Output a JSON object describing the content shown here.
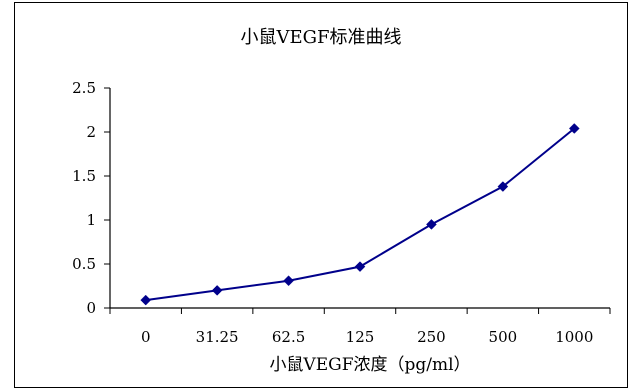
{
  "chart_data": {
    "type": "line",
    "title": "小鼠VEGF标准曲线",
    "xlabel": "小鼠VEGF浓度（pg/ml）",
    "ylabel": "",
    "categories": [
      "0",
      "31.25",
      "62.5",
      "125",
      "250",
      "500",
      "1000"
    ],
    "series": [
      {
        "values": [
          0.09,
          0.2,
          0.31,
          0.47,
          0.95,
          1.38,
          2.04
        ],
        "color": "#00008B"
      }
    ],
    "ylim": [
      0,
      2.5
    ],
    "yticks": [
      0,
      0.5,
      1,
      1.5,
      2,
      2.5
    ],
    "ytick_labels": [
      "0",
      "0.5",
      "1",
      "1.5",
      "2",
      "2.5"
    ],
    "grid": false,
    "legend": "none",
    "marker": "diamond"
  }
}
